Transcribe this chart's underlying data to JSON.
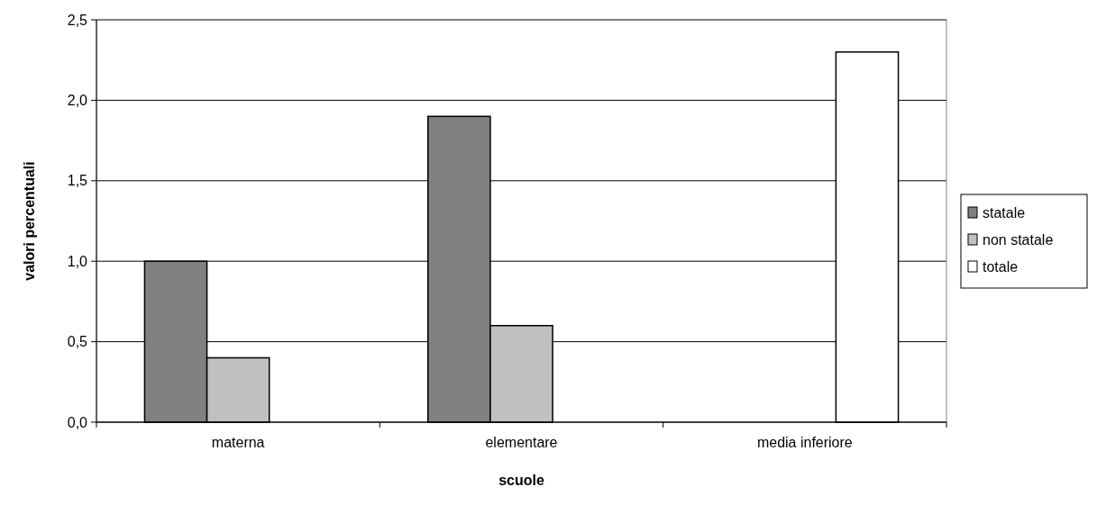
{
  "chart_data": {
    "type": "bar",
    "xlabel": "scuole",
    "ylabel": "valori percentuali",
    "categories": [
      "materna",
      "elementare",
      "media inferiore"
    ],
    "series": [
      {
        "name": "statale",
        "color": "#808080",
        "values": [
          1.0,
          1.9,
          null
        ]
      },
      {
        "name": "non statale",
        "color": "#c0c0c0",
        "values": [
          0.4,
          0.6,
          null
        ]
      },
      {
        "name": "totale",
        "color": "#ffffff",
        "values": [
          null,
          null,
          2.3
        ]
      }
    ],
    "ylim": [
      0,
      2.5
    ],
    "yticks": [
      {
        "value": 0,
        "label": "0,0"
      },
      {
        "value": 0.5,
        "label": "0,5"
      },
      {
        "value": 1,
        "label": "1,0"
      },
      {
        "value": 1.5,
        "label": "1,5"
      },
      {
        "value": 2,
        "label": "2,0"
      },
      {
        "value": 2.5,
        "label": "2,5"
      }
    ],
    "grid": "y",
    "legend": "right"
  }
}
